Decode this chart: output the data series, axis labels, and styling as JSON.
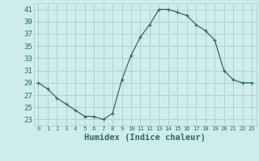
{
  "x": [
    0,
    1,
    2,
    3,
    4,
    5,
    6,
    7,
    8,
    9,
    10,
    11,
    12,
    13,
    14,
    15,
    16,
    17,
    18,
    19,
    20,
    21,
    22,
    23
  ],
  "y": [
    29,
    28,
    26.5,
    25.5,
    24.5,
    23.5,
    23.5,
    23,
    24,
    29.5,
    33.5,
    36.5,
    38.5,
    41,
    41,
    40.5,
    40,
    38.5,
    37.5,
    36,
    31,
    29.5,
    29,
    29
  ],
  "line_color": "#2e6b5e",
  "marker": "+",
  "marker_size": 3,
  "bg_color": "#cdecea",
  "grid_color": "#aacfcc",
  "tick_color": "#2e6b5e",
  "xlabel": "Humidex (Indice chaleur)",
  "ylim": [
    22,
    42
  ],
  "xlim": [
    -0.5,
    23.5
  ],
  "yticks": [
    23,
    25,
    27,
    29,
    31,
    33,
    35,
    37,
    39,
    41
  ],
  "xticks": [
    0,
    1,
    2,
    3,
    4,
    5,
    6,
    7,
    8,
    9,
    10,
    11,
    12,
    13,
    14,
    15,
    16,
    17,
    18,
    19,
    20,
    21,
    22,
    23
  ],
  "xlabel_fontsize": 7.5,
  "ytick_fontsize": 6.5,
  "xtick_fontsize": 5.2
}
